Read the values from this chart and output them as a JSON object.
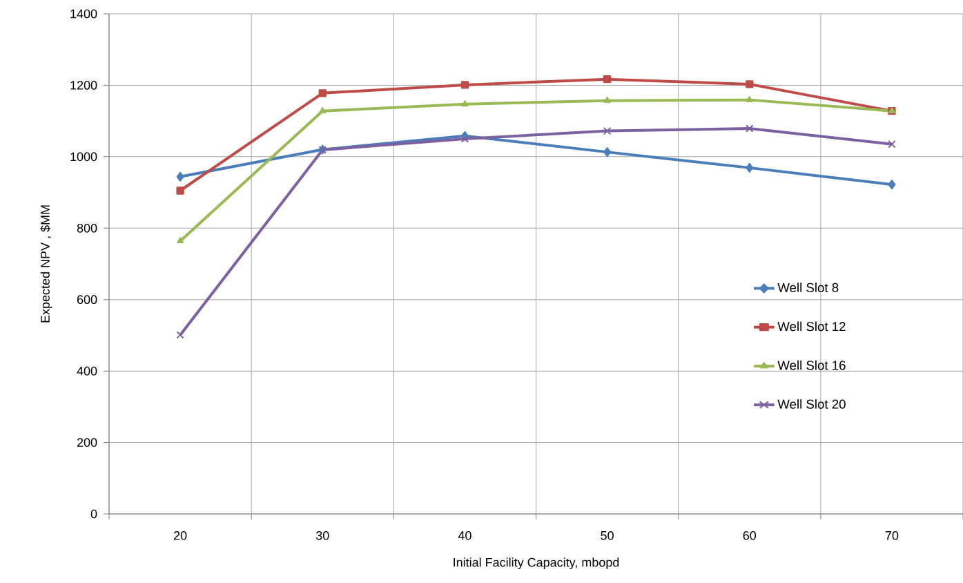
{
  "chart_data": {
    "type": "line",
    "xlabel": "Initial Facility Capacity,  mbopd",
    "ylabel": "Expected NPV , $MM",
    "categories": [
      "20",
      "30",
      "40",
      "50",
      "60",
      "70"
    ],
    "ylim": [
      0,
      1400
    ],
    "yticks": [
      0,
      200,
      400,
      600,
      800,
      1000,
      1200,
      1400
    ],
    "grid": true,
    "legend": "right",
    "line_style": "solid",
    "series": [
      {
        "name": "Well Slot 8",
        "color": "#4a7ebb",
        "marker": "diamond",
        "values": [
          944,
          1020,
          1058,
          1013,
          969,
          922
        ]
      },
      {
        "name": "Well Slot 12",
        "color": "#be4b48",
        "marker": "square",
        "values": [
          905,
          1178,
          1201,
          1217,
          1203,
          1128
        ]
      },
      {
        "name": "Well Slot 16",
        "color": "#98b954",
        "marker": "triangle",
        "values": [
          764,
          1128,
          1147,
          1157,
          1159,
          1128
        ]
      },
      {
        "name": "Well Slot 20",
        "color": "#7d60a0",
        "marker": "cross",
        "values": [
          501,
          1019,
          1050,
          1072,
          1079,
          1035
        ]
      }
    ]
  }
}
